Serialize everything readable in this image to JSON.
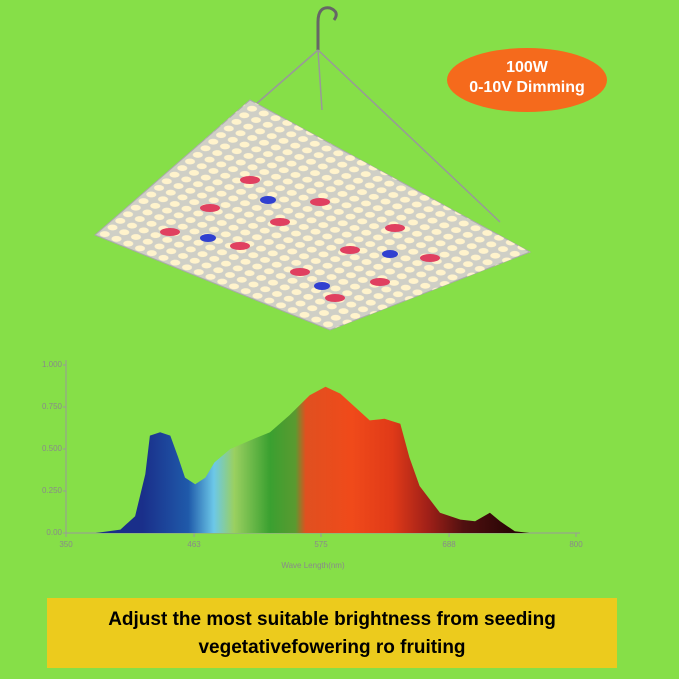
{
  "badge": {
    "power": "100W",
    "dimming": "0-10V Dimming"
  },
  "chart_data": {
    "type": "area",
    "x_label": "Wave Length(nm)",
    "x": [
      376,
      398,
      411,
      420,
      424,
      433,
      442,
      449,
      455,
      464,
      473,
      481,
      495,
      512,
      530,
      547,
      565,
      579,
      592,
      605,
      618,
      631,
      645,
      653,
      662,
      680,
      698,
      711,
      724,
      733,
      746,
      759
    ],
    "values": [
      0,
      0.02,
      0.1,
      0.35,
      0.58,
      0.6,
      0.58,
      0.45,
      0.33,
      0.29,
      0.33,
      0.42,
      0.5,
      0.55,
      0.6,
      0.7,
      0.82,
      0.87,
      0.83,
      0.75,
      0.67,
      0.68,
      0.65,
      0.45,
      0.28,
      0.12,
      0.08,
      0.07,
      0.12,
      0.07,
      0.01,
      0
    ],
    "xlim": [
      350,
      800
    ],
    "ylim": [
      0,
      1
    ],
    "xticks": [
      350,
      463,
      575,
      688,
      800
    ],
    "yticks": [
      {
        "value": 0,
        "label": "0.00"
      },
      {
        "value": 0.25,
        "label": "0.250"
      },
      {
        "value": 0.5,
        "label": "0.500"
      },
      {
        "value": 0.75,
        "label": "0.750"
      },
      {
        "value": 1,
        "label": "1.000"
      }
    ]
  },
  "banner": {
    "lines": [
      "Adjust the most suitable brightness from seeding",
      "vegetativefowering ro fruiting"
    ]
  }
}
